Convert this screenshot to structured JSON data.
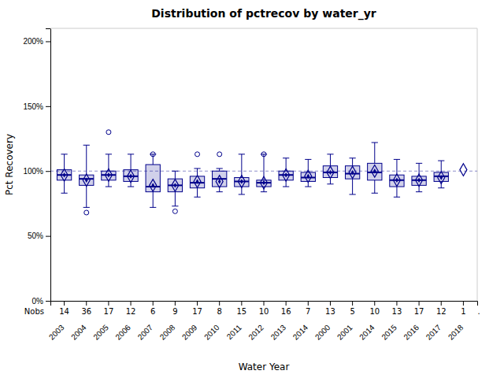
{
  "chart_data": {
    "type": "box",
    "title": "Distribution of pctrecov by water_yr",
    "x_label": "Water Year",
    "y_label": "Pct Recovery",
    "categories": [
      "2003",
      "2004",
      "2005",
      "2006",
      "2007",
      "2008",
      "2009",
      "2010",
      "2011",
      "2012",
      "2013",
      "2014",
      "2000",
      "2001",
      "2014",
      "2015",
      "2016",
      "2017",
      "2018"
    ],
    "whislo": [
      83,
      72,
      88,
      88,
      72,
      73,
      80,
      84,
      82,
      84,
      88,
      88,
      90,
      82,
      83,
      80,
      84,
      87,
      null
    ],
    "q1": [
      93,
      89,
      93,
      92,
      84,
      84,
      87,
      88,
      88,
      88,
      93,
      92,
      95,
      94,
      93,
      88,
      89,
      92,
      null
    ],
    "med": [
      97,
      94,
      97,
      96,
      88,
      89,
      91,
      94,
      92,
      91,
      97,
      95,
      99,
      98,
      99,
      93,
      93,
      96,
      null
    ],
    "q3": [
      101,
      97,
      100,
      101,
      105,
      94,
      96,
      100,
      95,
      93,
      100,
      99,
      104,
      104,
      106,
      97,
      96,
      99,
      null
    ],
    "whishi": [
      113,
      120,
      113,
      113,
      113,
      100,
      102,
      102,
      113,
      113,
      110,
      109,
      113,
      110,
      122,
      109,
      106,
      108,
      null
    ],
    "mean": [
      97,
      93,
      97,
      96,
      89,
      89,
      92,
      92,
      92,
      91,
      97,
      96,
      99,
      99,
      100,
      93,
      93,
      95,
      101
    ],
    "fliers_hi": [
      null,
      null,
      130,
      null,
      113,
      null,
      113,
      113,
      null,
      113,
      null,
      null,
      null,
      null,
      null,
      null,
      null,
      null,
      null
    ],
    "fliers_lo": [
      null,
      68,
      null,
      null,
      null,
      69,
      null,
      null,
      null,
      null,
      null,
      null,
      null,
      null,
      null,
      null,
      null,
      null,
      null
    ],
    "nobs_label": "Nobs",
    "nobs": [
      14,
      36,
      17,
      12,
      6,
      9,
      17,
      8,
      15,
      10,
      16,
      7,
      13,
      5,
      10,
      13,
      17,
      12,
      1
    ],
    "nobs_suffix": ".",
    "ref_line": 100,
    "ylim": [
      0,
      210
    ],
    "yticks": [
      {
        "value": 0,
        "label": "0%"
      },
      {
        "value": 50,
        "label": "50%"
      },
      {
        "value": 100,
        "label": "100%"
      },
      {
        "value": 150,
        "label": "150%"
      },
      {
        "value": 200,
        "label": "200%"
      }
    ],
    "color": "#00008b",
    "grid": false
  }
}
